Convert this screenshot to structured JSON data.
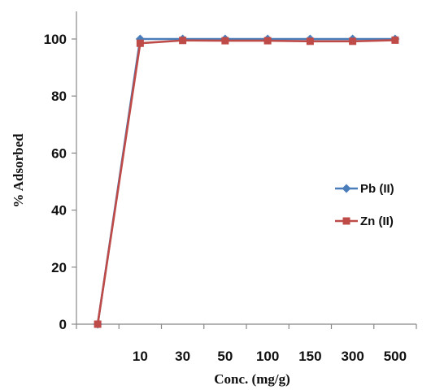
{
  "chart_data": {
    "type": "line",
    "title": "",
    "xlabel": "Conc. (mg/g)",
    "ylabel": "% Adsorbed",
    "categories": [
      "",
      "10",
      "30",
      "50",
      "100",
      "150",
      "300",
      "500"
    ],
    "ylim": [
      0,
      100
    ],
    "yticks": [
      0,
      20,
      40,
      60,
      80,
      100
    ],
    "grid": false,
    "legend_position": "right",
    "series": [
      {
        "name": "Pb (II)",
        "color": "#4a7ebb",
        "marker": "diamond",
        "values": [
          0,
          100,
          100,
          100,
          100,
          100,
          100,
          100
        ]
      },
      {
        "name": "Zn (II)",
        "color": "#be4b48",
        "marker": "square",
        "values": [
          0,
          98.5,
          99.5,
          99.4,
          99.4,
          99.2,
          99.2,
          99.6
        ]
      }
    ]
  }
}
